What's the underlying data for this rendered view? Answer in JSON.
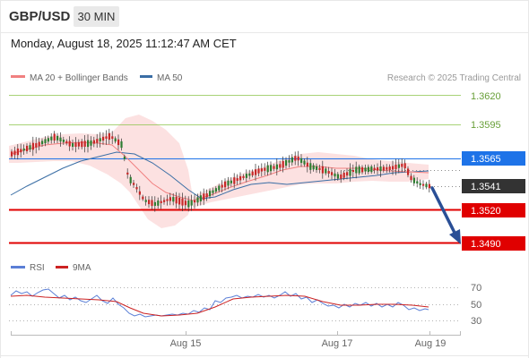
{
  "header": {
    "pair": "GBP/USD",
    "timeframe": "30 MIN",
    "timestamp": "Monday, August 18, 2025 11:12:47 AM CET"
  },
  "legend": {
    "ma20": "MA 20 + Bollinger Bands",
    "ma50": "MA 50",
    "copyright": "Research © 2025 Trading Central"
  },
  "price_levels": [
    {
      "value": "1.3620",
      "kind": "resistance-minor"
    },
    {
      "value": "1.3595",
      "kind": "resistance-minor"
    },
    {
      "value": "1.3565",
      "kind": "pivot"
    },
    {
      "value": "1.3541",
      "kind": "last-price"
    },
    {
      "value": "1.3520",
      "kind": "support"
    },
    {
      "value": "1.3490",
      "kind": "support-target"
    }
  ],
  "rsi_panel": {
    "rsi_label": "RSI",
    "ma_label": "9MA",
    "levels": [
      "70",
      "50",
      "30"
    ]
  },
  "x_axis": {
    "labels": [
      "Aug 15",
      "Aug 17",
      "Aug 19"
    ]
  },
  "colors": {
    "ma20": "#f08080",
    "ma50": "#3a6ea5",
    "bollinger_fill": "#fcdede",
    "green_level": "#8bc34a",
    "pivot": "#1e73e8",
    "support": "#e00000",
    "last_price_bg": "#333333",
    "bull_candle": "#2e7d32",
    "bear_candle": "#c62828",
    "arrow": "#2a4f96",
    "rsi": "#5b7fd6",
    "rsi_ma": "#cc2222"
  }
}
